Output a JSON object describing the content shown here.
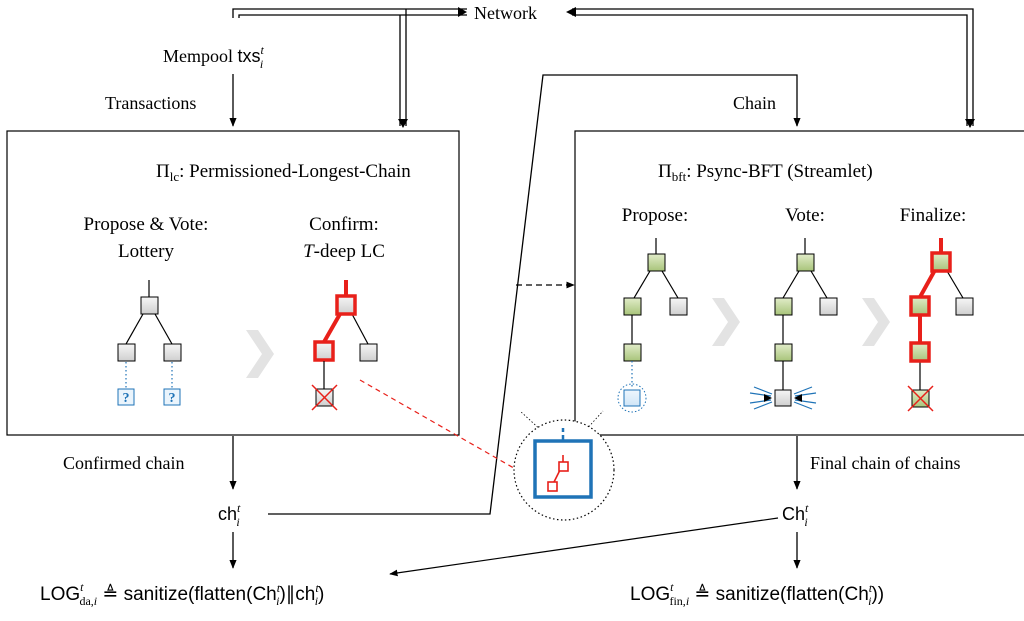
{
  "network": {
    "label": "Network"
  },
  "mempool": {
    "prefix": "Mempool ",
    "var": "txs",
    "sup": "t",
    "sub": "i"
  },
  "edge_labels": {
    "transactions": "Transactions",
    "chain": "Chain",
    "confirmed_chain": "Confirmed chain",
    "final_chain": "Final chain of chains"
  },
  "lc_box": {
    "title_sym": "Π",
    "title_sub": "lc",
    "title_rest": ": Permissioned-Longest-Chain",
    "propose_line1": "Propose & Vote:",
    "propose_line2": "Lottery",
    "confirm_line1": "Confirm:",
    "confirm_T": "T",
    "confirm_rest": "-deep LC",
    "unknown_mark": "?"
  },
  "bft_box": {
    "title_sym": "Π",
    "title_sub": "bft",
    "title_rest": ": Psync-BFT (Streamlet)",
    "propose_label": "Propose:",
    "vote_label": "Vote:",
    "finalize_label": "Finalize:"
  },
  "ch_lc": {
    "base": "ch",
    "sup": "t",
    "sub": "i"
  },
  "ch_bft": {
    "base": "Ch",
    "sup": "t",
    "sub": "i"
  },
  "log_da": {
    "base": "LOG",
    "sup": "t",
    "sub": "da,",
    "sub_i": "i",
    "eq": " ≜ sanitize(flatten(Ch",
    "mid": ")∥ch",
    "end": ")"
  },
  "log_fin": {
    "base": "LOG",
    "sup": "t",
    "sub": "fin,",
    "sub_i": "i",
    "eq": " ≜ sanitize(flatten(Ch",
    "end": "))"
  },
  "colors": {
    "red": "#e8201a",
    "blue": "#1f73b7",
    "green_fill": "#c5d9a1",
    "gray_fill": "#e6e6e6",
    "chevron": "#e3e3e3"
  }
}
